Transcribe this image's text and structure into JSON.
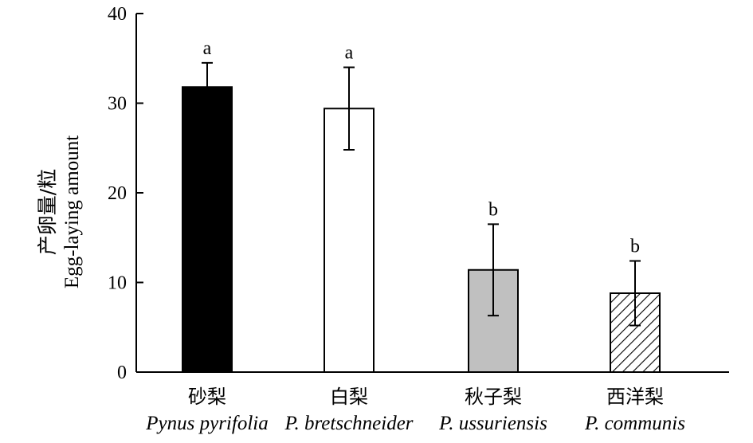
{
  "chart_data": {
    "type": "bar",
    "ylabel_cn": "产卵量/粒",
    "ylabel_en": "Egg-laying amount",
    "ylim": [
      0,
      40
    ],
    "yticks": [
      0,
      10,
      20,
      30,
      40
    ],
    "grid": false,
    "categories": [
      {
        "cn": "砂梨",
        "en": "Pynus pyrifolia"
      },
      {
        "cn": "白梨",
        "en": "P. bretschneider"
      },
      {
        "cn": "秋子梨",
        "en": "P. ussuriensis"
      },
      {
        "cn": "西洋梨",
        "en": "P. communis"
      }
    ],
    "values": [
      31.8,
      29.4,
      11.4,
      8.8
    ],
    "errors": [
      2.7,
      4.6,
      5.1,
      3.6
    ],
    "significance": [
      "a",
      "a",
      "b",
      "b"
    ],
    "bar_fills": [
      "solid-black",
      "white",
      "gray",
      "hatched"
    ],
    "colors": {
      "black": "#000000",
      "white": "#ffffff",
      "gray": "#c0c0c0"
    }
  }
}
